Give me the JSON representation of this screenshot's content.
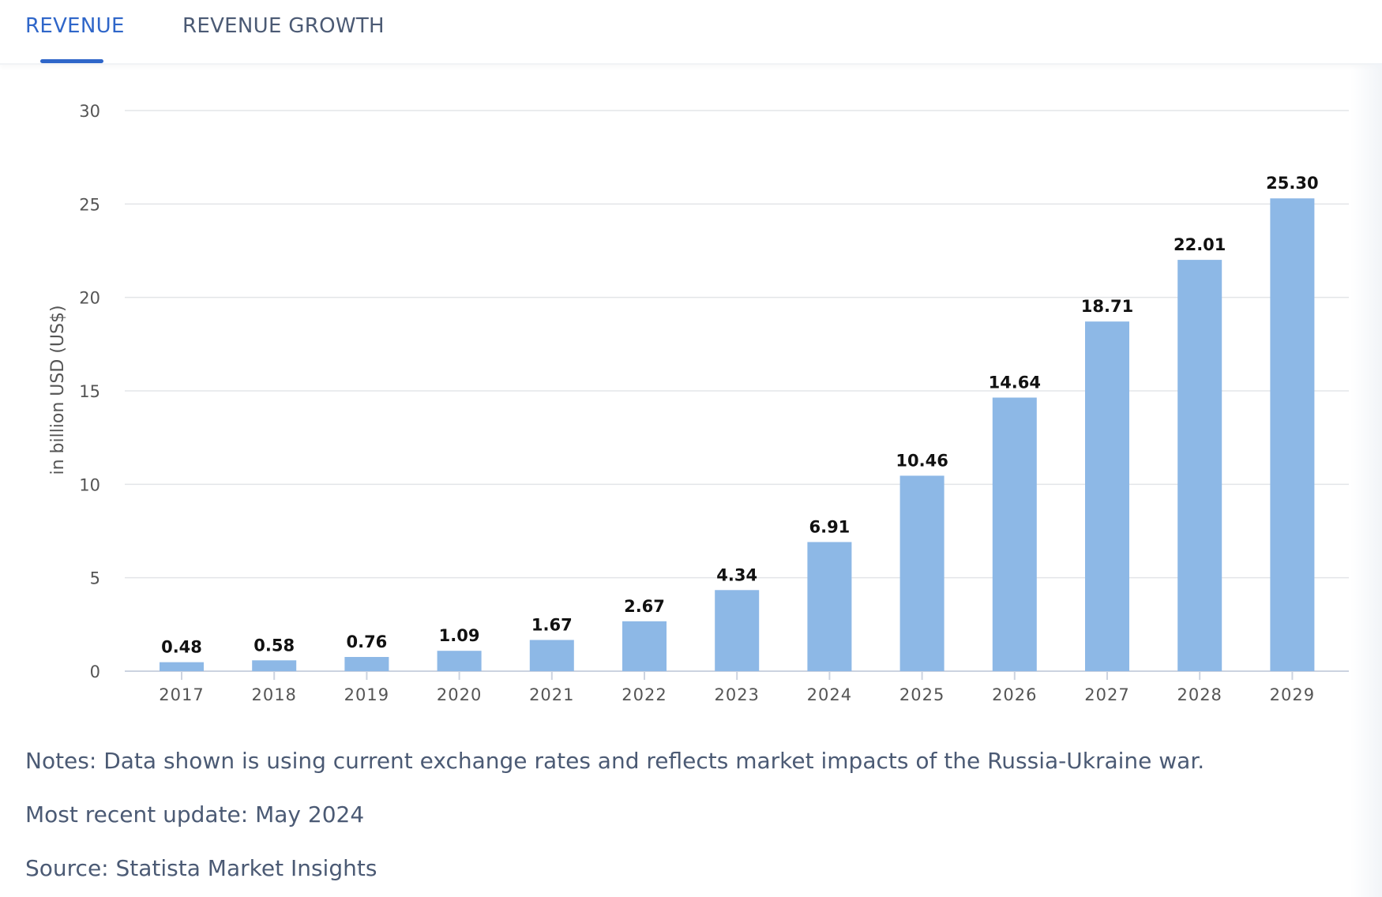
{
  "tabs": [
    {
      "label": "REVENUE",
      "active": true
    },
    {
      "label": "REVENUE GROWTH",
      "active": false
    }
  ],
  "colors": {
    "accent": "#2f66c9",
    "bar": "#8db8e6",
    "grid": "#e3e5e8",
    "text": "#4b5a74"
  },
  "chart_data": {
    "type": "bar",
    "categories": [
      "2017",
      "2018",
      "2019",
      "2020",
      "2021",
      "2022",
      "2023",
      "2024",
      "2025",
      "2026",
      "2027",
      "2028",
      "2029"
    ],
    "values": [
      0.48,
      0.58,
      0.76,
      1.09,
      1.67,
      2.67,
      4.34,
      6.91,
      10.46,
      14.64,
      18.71,
      22.01,
      25.3
    ],
    "value_labels": [
      "0.48",
      "0.58",
      "0.76",
      "1.09",
      "1.67",
      "2.67",
      "4.34",
      "6.91",
      "10.46",
      "14.64",
      "18.71",
      "22.01",
      "25.30"
    ],
    "title": "",
    "xlabel": "",
    "ylabel": "in billion USD (US$)",
    "ylim": [
      0,
      30
    ],
    "yticks": [
      "0",
      "5",
      "10",
      "15",
      "20",
      "25",
      "30"
    ],
    "grid": true,
    "legend": "none"
  },
  "notes": {
    "note": "Notes: Data shown is using current exchange rates and reflects market impacts of the Russia-Ukraine war.",
    "update": "Most recent update: May 2024",
    "source": "Source: Statista Market Insights"
  }
}
